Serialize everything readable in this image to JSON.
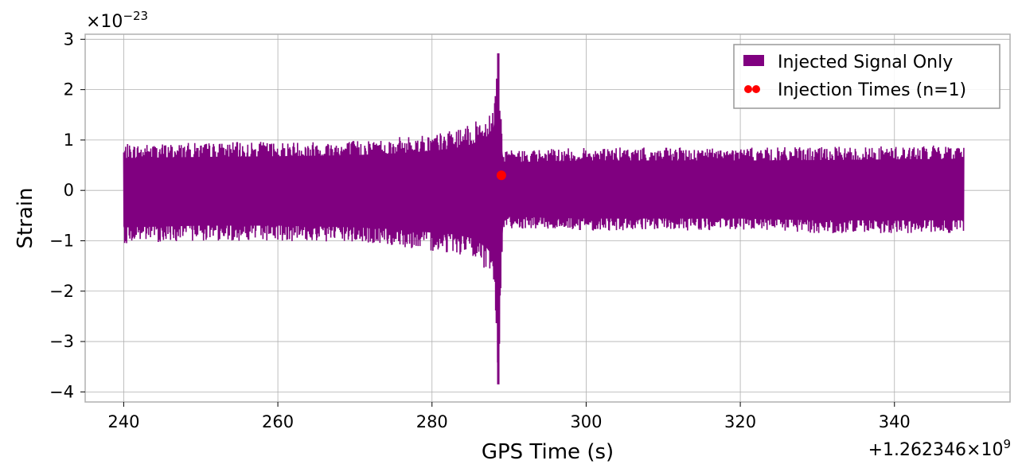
{
  "chart_data": {
    "type": "line",
    "xlabel": "GPS Time (s)",
    "ylabel": "Strain",
    "x_offset_label": "+1.262346×10",
    "x_offset_exp": "9",
    "y_scale_label": "×10",
    "y_scale_exp": "−23",
    "xlim": [
      235,
      355
    ],
    "ylim": [
      -4.2,
      3.1
    ],
    "xticks": [
      240,
      260,
      280,
      300,
      320,
      340
    ],
    "xtick_labels": [
      "240",
      "260",
      "280",
      "300",
      "320",
      "340"
    ],
    "yticks": [
      -4,
      -3,
      -2,
      -1,
      0,
      1,
      2,
      3
    ],
    "ytick_labels": [
      "−4",
      "−3",
      "−2",
      "−1",
      "0",
      "1",
      "2",
      "3"
    ],
    "grid": true,
    "legend_position": "top-right",
    "series": [
      {
        "name": "Injected Signal Only",
        "kind": "line",
        "color": "#800080",
        "x": [
          240,
          250,
          260,
          270,
          275,
          280,
          283,
          285,
          287,
          288,
          288.6,
          289.0,
          289.2,
          290,
          300,
          310,
          320,
          330,
          340,
          349
        ],
        "y_upper": [
          0.92,
          0.95,
          0.97,
          1.0,
          1.05,
          1.12,
          1.2,
          1.3,
          1.5,
          1.8,
          2.72,
          1.4,
          0.75,
          0.8,
          0.85,
          0.85,
          0.85,
          0.86,
          0.88,
          0.9
        ],
        "y_lower": [
          -1.05,
          -1.0,
          -1.0,
          -1.05,
          -1.1,
          -1.2,
          -1.25,
          -1.35,
          -1.6,
          -1.9,
          -3.85,
          -1.8,
          -0.8,
          -0.75,
          -0.8,
          -0.8,
          -0.8,
          -0.85,
          -0.85,
          -0.85
        ]
      },
      {
        "name": "Injection Times (n=1)",
        "kind": "scatter",
        "color": "#ff0000",
        "x": [
          289.0
        ],
        "y": [
          0.3
        ]
      }
    ]
  }
}
